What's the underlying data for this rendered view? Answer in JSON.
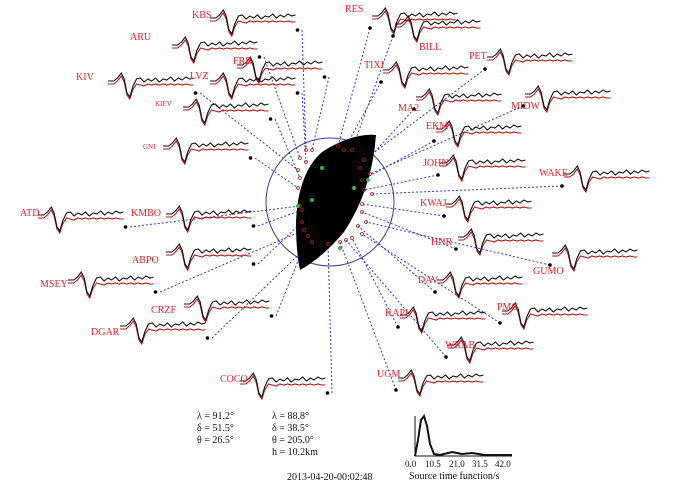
{
  "colors": {
    "station_label": "#e8202a",
    "observed": "#111111",
    "synthetic": "#b01818",
    "ray": "#2b3bd6",
    "beachball": "#000000",
    "circle": "#3a3a9a",
    "green_dot": "#3fb43f"
  },
  "stations": [
    {
      "name": "KBS"
    },
    {
      "name": "RES"
    },
    {
      "name": "ARU"
    },
    {
      "name": "BILL"
    },
    {
      "name": "FRB"
    },
    {
      "name": "TIXI"
    },
    {
      "name": "PET"
    },
    {
      "name": "KIV"
    },
    {
      "name": "LVZ"
    },
    {
      "name": "MA2"
    },
    {
      "name": "MIDW"
    },
    {
      "name": "KIEV"
    },
    {
      "name": "EKM"
    },
    {
      "name": "GNI"
    },
    {
      "name": "JOHN"
    },
    {
      "name": "WAKE"
    },
    {
      "name": "ATD"
    },
    {
      "name": "KMBO"
    },
    {
      "name": "KWAJ"
    },
    {
      "name": "HNR"
    },
    {
      "name": "ABPO"
    },
    {
      "name": "GUMO"
    },
    {
      "name": "DAV"
    },
    {
      "name": "MSEY"
    },
    {
      "name": "CRZF"
    },
    {
      "name": "PMG"
    },
    {
      "name": "KAPI"
    },
    {
      "name": "DGAR"
    },
    {
      "name": "WRAB"
    },
    {
      "name": "UGM"
    },
    {
      "name": "COCO"
    }
  ],
  "mechanism": {
    "plane1": {
      "lambda": "λ = 91.2°",
      "delta": "δ = 51.5°",
      "theta": "θ = 26.5°"
    },
    "plane2": {
      "lambda": "λ = 88.8°",
      "delta": "δ = 38.5°",
      "theta": "θ = 205.0°",
      "h": "h = 10.2km"
    }
  },
  "event_time": "2013-04-20-00:02:48",
  "stf": {
    "xlabel": "Source time function/s",
    "ticks": [
      "0.0",
      "10.5",
      "21.0",
      "31.5",
      "42.0"
    ]
  }
}
